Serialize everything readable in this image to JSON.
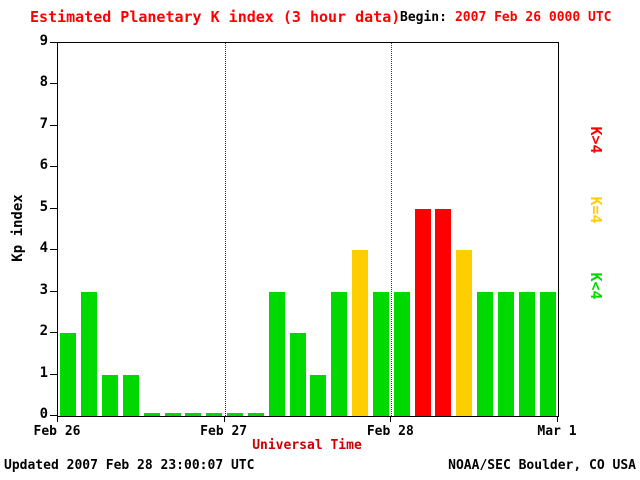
{
  "chart_data": {
    "type": "bar",
    "title": "Estimated Planetary K index (3 hour data)",
    "begin_label": "Begin:",
    "begin_value": "2007 Feb 26 0000 UTC",
    "xlabel": "Universal Time",
    "ylabel": "Kp index",
    "ylim": [
      0,
      9
    ],
    "y_ticks": [
      0,
      1,
      2,
      3,
      4,
      5,
      6,
      7,
      8,
      9
    ],
    "x_tick_labels": [
      "Feb 26",
      "Feb 27",
      "Feb 28",
      "Mar 1"
    ],
    "days_shown": 3,
    "bars_per_day": 8,
    "interval_hours": 3,
    "values": [
      2,
      3,
      1,
      1,
      0,
      0,
      0,
      0,
      0,
      0,
      3,
      2,
      1,
      3,
      4,
      3,
      3,
      5,
      5,
      4,
      3,
      3,
      3,
      3
    ],
    "grid": "dotted vertical lines at day boundaries",
    "colors": {
      "low": "#00d900",
      "mid": "#ffce00",
      "high": "#ff0000",
      "accent_red": "#ff0000",
      "axis": "#000000"
    },
    "legend": [
      {
        "label": "K>4",
        "color": "#ff0000"
      },
      {
        "label": "K=4",
        "color": "#ffce00"
      },
      {
        "label": "K<4",
        "color": "#00d900"
      }
    ],
    "legend_position": "right, rotated 90deg"
  },
  "footer": {
    "updated": "Updated 2007 Feb 28 23:00:07 UTC",
    "credit": "NOAA/SEC Boulder, CO USA"
  }
}
